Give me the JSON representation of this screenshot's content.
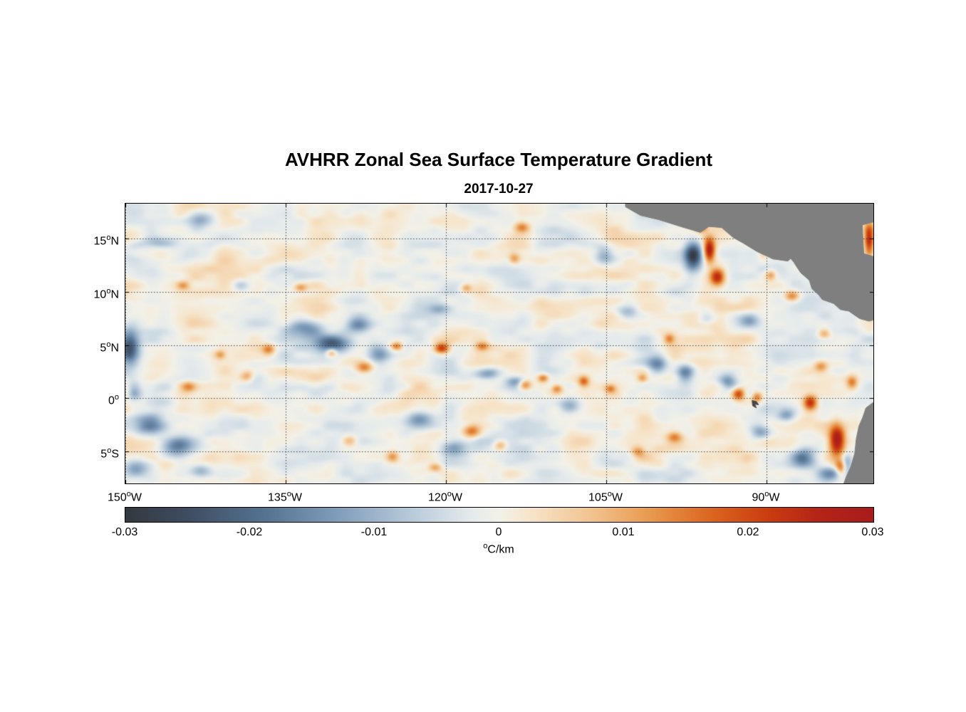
{
  "page": {
    "background": "#ffffff"
  },
  "chart_data": {
    "type": "heatmap",
    "title": "AVHRR Zonal Sea Surface Temperature Gradient",
    "subtitle": "2017-10-27",
    "xlabel": "",
    "ylabel": "",
    "lon_range": [
      -150,
      -80
    ],
    "lat_range": [
      -8,
      18.3
    ],
    "grid": {
      "style": "dotted",
      "color": "rgba(51,51,51,0.9)"
    },
    "xticks": [
      {
        "lon": -150,
        "label": "150",
        "sup": "o",
        "hemi": "W"
      },
      {
        "lon": -135,
        "label": "135",
        "sup": "o",
        "hemi": "W"
      },
      {
        "lon": -120,
        "label": "120",
        "sup": "o",
        "hemi": "W"
      },
      {
        "lon": -105,
        "label": "105",
        "sup": "o",
        "hemi": "W"
      },
      {
        "lon": -90,
        "label": "90",
        "sup": "o",
        "hemi": "W"
      }
    ],
    "yticks": [
      {
        "lat": 15,
        "label": "15",
        "sup": "o",
        "hemi": "N"
      },
      {
        "lat": 10,
        "label": "10",
        "sup": "o",
        "hemi": "N"
      },
      {
        "lat": 5,
        "label": "5",
        "sup": "o",
        "hemi": "N"
      },
      {
        "lat": 0,
        "label": "0",
        "sup": "o",
        "hemi": ""
      },
      {
        "lat": -5,
        "label": "5",
        "sup": "o",
        "hemi": "S"
      }
    ],
    "colorbar": {
      "min": -0.03,
      "max": 0.03,
      "tick_labels": [
        "-0.03",
        "-0.02",
        "-0.01",
        "0",
        "0.01",
        "0.02",
        "0.03"
      ],
      "units_sup": "o",
      "units_rest": "C/km"
    },
    "colormap": [
      [
        0.0,
        "#33393f"
      ],
      [
        0.08,
        "#3e4c60"
      ],
      [
        0.18,
        "#53718f"
      ],
      [
        0.28,
        "#7f9cba"
      ],
      [
        0.38,
        "#b7cad9"
      ],
      [
        0.46,
        "#e4eaec"
      ],
      [
        0.5,
        "#f3f1e8"
      ],
      [
        0.54,
        "#f6e5cb"
      ],
      [
        0.62,
        "#f2c491"
      ],
      [
        0.7,
        "#e89a4e"
      ],
      [
        0.78,
        "#dc6720"
      ],
      [
        0.86,
        "#c93c10"
      ],
      [
        0.93,
        "#b32318"
      ],
      [
        1.0,
        "#a81c1c"
      ]
    ],
    "land_color": "#7f7f7f",
    "galapagos_color": "#474747",
    "land_polygons": {
      "central_america": [
        [
          -103.2,
          18.3
        ],
        [
          -103.2,
          18.0
        ],
        [
          -101.8,
          17.2
        ],
        [
          -100.1,
          16.8
        ],
        [
          -97.9,
          16.1
        ],
        [
          -96.2,
          15.6
        ],
        [
          -95.4,
          16.15
        ],
        [
          -94.2,
          16.05
        ],
        [
          -93.1,
          15.1
        ],
        [
          -92.2,
          14.6
        ],
        [
          -90.9,
          13.8
        ],
        [
          -89.4,
          13.1
        ],
        [
          -88.0,
          12.9
        ],
        [
          -87.75,
          13.15
        ],
        [
          -87.45,
          12.8
        ],
        [
          -87.2,
          12.4
        ],
        [
          -86.8,
          11.8
        ],
        [
          -86.0,
          11.1
        ],
        [
          -85.75,
          10.3
        ],
        [
          -85.1,
          9.7
        ],
        [
          -84.8,
          9.3
        ],
        [
          -83.7,
          8.9
        ],
        [
          -83.1,
          8.35
        ],
        [
          -82.3,
          8.2
        ],
        [
          -81.3,
          7.5
        ],
        [
          -80.4,
          7.25
        ],
        [
          -79.9,
          7.4
        ],
        [
          -79.9,
          13.3
        ],
        [
          -80.9,
          13.6
        ],
        [
          -81.05,
          16.3
        ],
        [
          -79.9,
          16.6
        ],
        [
          -79.9,
          18.3
        ]
      ],
      "south_america": [
        [
          -79.9,
          -0.3
        ],
        [
          -80.7,
          -0.9
        ],
        [
          -81.0,
          -1.8
        ],
        [
          -81.35,
          -2.6
        ],
        [
          -81.6,
          -3.8
        ],
        [
          -81.75,
          -5.2
        ],
        [
          -82.1,
          -6.4
        ],
        [
          -82.55,
          -7.4
        ],
        [
          -82.8,
          -8.1
        ],
        [
          -79.9,
          -8.1
        ]
      ],
      "galapagos": [
        [
          -91.35,
          -0.2
        ],
        [
          -90.95,
          -0.3
        ],
        [
          -90.75,
          -0.6
        ],
        [
          -91.1,
          -0.55
        ],
        [
          -90.95,
          -0.9
        ],
        [
          -91.3,
          -0.7
        ]
      ]
    },
    "field": {
      "noise": {
        "seed": 7,
        "amplitude": 0.006,
        "scale_deg": 1.6,
        "zonal_stretch": 1.9
      },
      "blobs": [
        [
          -149.6,
          4.8,
          0.9,
          1.6,
          -0.024
        ],
        [
          -149.2,
          0.6,
          0.7,
          1.0,
          -0.012
        ],
        [
          -147.6,
          -2.6,
          1.6,
          1.0,
          -0.02
        ],
        [
          -145.2,
          -4.6,
          1.4,
          0.9,
          -0.016
        ],
        [
          -149.0,
          -6.5,
          1.2,
          0.8,
          -0.012
        ],
        [
          -143.0,
          -6.8,
          1.0,
          0.6,
          -0.01
        ],
        [
          -142.8,
          16.8,
          1.3,
          0.8,
          -0.011
        ],
        [
          -146.8,
          14.6,
          1.8,
          0.5,
          -0.008
        ],
        [
          -139.2,
          10.6,
          0.8,
          0.6,
          -0.009
        ],
        [
          -133.2,
          6.6,
          1.9,
          0.8,
          -0.016
        ],
        [
          -130.6,
          5.1,
          1.6,
          0.8,
          -0.02
        ],
        [
          -128.2,
          6.9,
          1.1,
          0.7,
          -0.014
        ],
        [
          -126.3,
          4.1,
          1.0,
          0.8,
          -0.013
        ],
        [
          -122.6,
          -2.1,
          1.5,
          0.9,
          -0.015
        ],
        [
          -119.2,
          -4.6,
          1.3,
          0.8,
          -0.013
        ],
        [
          -116.2,
          2.3,
          1.3,
          0.6,
          -0.016
        ],
        [
          -113.4,
          1.6,
          1.0,
          0.5,
          -0.013
        ],
        [
          -120.6,
          8.4,
          1.1,
          0.5,
          -0.009
        ],
        [
          -108.4,
          -0.6,
          1.0,
          0.7,
          -0.011
        ],
        [
          -105.2,
          13.4,
          0.9,
          0.9,
          -0.011
        ],
        [
          -103.0,
          8.1,
          1.0,
          0.7,
          -0.011
        ],
        [
          -100.2,
          3.1,
          0.9,
          0.9,
          -0.015
        ],
        [
          -97.6,
          2.4,
          0.8,
          0.9,
          -0.017
        ],
        [
          -96.9,
          13.4,
          0.8,
          1.3,
          -0.027
        ],
        [
          -95.6,
          7.6,
          0.8,
          0.6,
          -0.009
        ],
        [
          -93.6,
          1.6,
          0.8,
          0.7,
          -0.013
        ],
        [
          -91.6,
          7.4,
          0.9,
          0.7,
          -0.011
        ],
        [
          -90.6,
          -3.1,
          1.0,
          0.8,
          -0.013
        ],
        [
          -88.1,
          -1.6,
          0.8,
          0.6,
          -0.011
        ],
        [
          -86.6,
          -5.6,
          1.0,
          0.8,
          -0.015
        ],
        [
          -84.1,
          -7.1,
          1.1,
          0.7,
          -0.013
        ],
        [
          -82.6,
          -6.1,
          0.6,
          0.9,
          -0.018
        ],
        [
          -95.35,
          13.9,
          0.55,
          1.15,
          0.032
        ],
        [
          -94.6,
          11.4,
          0.7,
          0.8,
          0.027
        ],
        [
          -96.1,
          16.0,
          0.5,
          0.4,
          0.016
        ],
        [
          -90.3,
          14.3,
          0.4,
          0.9,
          0.016
        ],
        [
          -80.4,
          14.9,
          0.45,
          1.4,
          0.026
        ],
        [
          -83.4,
          -3.9,
          0.75,
          1.5,
          0.03
        ],
        [
          -83.0,
          -6.5,
          0.5,
          0.8,
          0.022
        ],
        [
          -85.9,
          -0.4,
          0.65,
          0.7,
          0.025
        ],
        [
          -92.6,
          0.4,
          0.6,
          0.6,
          0.022
        ],
        [
          -90.9,
          0.1,
          0.5,
          0.5,
          0.016
        ],
        [
          -120.4,
          4.7,
          0.7,
          0.5,
          0.024
        ],
        [
          -124.6,
          4.9,
          0.55,
          0.4,
          0.016
        ],
        [
          -127.6,
          2.9,
          0.8,
          0.5,
          0.015
        ],
        [
          -130.7,
          4.3,
          0.5,
          0.4,
          0.015
        ],
        [
          -136.6,
          4.6,
          0.6,
          0.5,
          0.015
        ],
        [
          -141.1,
          4.1,
          0.5,
          0.4,
          0.011
        ],
        [
          -133.6,
          10.4,
          0.6,
          0.4,
          0.012
        ],
        [
          -116.6,
          4.9,
          0.6,
          0.4,
          0.013
        ],
        [
          -112.6,
          1.3,
          0.6,
          0.5,
          0.018
        ],
        [
          -110.9,
          1.9,
          0.5,
          0.4,
          0.015
        ],
        [
          -109.6,
          0.9,
          0.5,
          0.4,
          0.014
        ],
        [
          -107.1,
          1.6,
          0.5,
          0.5,
          0.016
        ],
        [
          -104.6,
          0.9,
          0.5,
          0.4,
          0.013
        ],
        [
          -101.6,
          1.9,
          0.5,
          0.4,
          0.012
        ],
        [
          -112.9,
          16.1,
          0.7,
          0.5,
          0.013
        ],
        [
          -113.6,
          13.1,
          0.5,
          0.5,
          0.011
        ],
        [
          -118.1,
          10.4,
          0.5,
          0.4,
          0.011
        ],
        [
          -99.1,
          5.6,
          0.5,
          0.5,
          0.013
        ],
        [
          -87.6,
          9.6,
          0.7,
          0.5,
          0.016
        ],
        [
          -89.6,
          11.6,
          0.5,
          0.5,
          0.013
        ],
        [
          -84.6,
          6.1,
          0.6,
          0.5,
          0.013
        ],
        [
          -98.6,
          -3.6,
          0.7,
          0.5,
          0.013
        ],
        [
          -117.6,
          -3.1,
          0.8,
          0.6,
          0.016
        ],
        [
          -114.9,
          -4.4,
          0.6,
          0.5,
          0.012
        ],
        [
          -144.1,
          1.1,
          0.7,
          0.5,
          0.012
        ],
        [
          -138.6,
          2.1,
          0.6,
          0.5,
          0.011
        ],
        [
          -144.6,
          10.6,
          0.6,
          0.4,
          0.01
        ],
        [
          -129.0,
          -4.0,
          0.7,
          0.5,
          0.011
        ],
        [
          -125.0,
          -5.5,
          0.6,
          0.5,
          0.012
        ],
        [
          -121.0,
          -6.5,
          0.6,
          0.4,
          0.011
        ],
        [
          -102.0,
          -5.0,
          0.6,
          0.5,
          0.011
        ],
        [
          -84.9,
          3.0,
          0.6,
          0.5,
          0.012
        ],
        [
          -82.0,
          1.5,
          0.5,
          0.6,
          0.014
        ]
      ]
    }
  }
}
